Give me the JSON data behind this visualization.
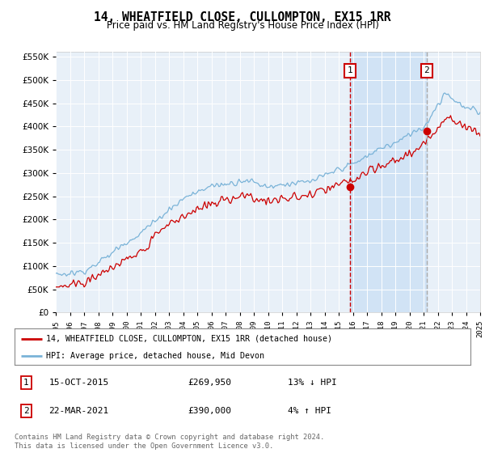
{
  "title": "14, WHEATFIELD CLOSE, CULLOMPTON, EX15 1RR",
  "subtitle": "Price paid vs. HM Land Registry's House Price Index (HPI)",
  "legend_line1": "14, WHEATFIELD CLOSE, CULLOMPTON, EX15 1RR (detached house)",
  "legend_line2": "HPI: Average price, detached house, Mid Devon",
  "annotation1_date": "15-OCT-2015",
  "annotation1_price": "£269,950",
  "annotation1_hpi": "13% ↓ HPI",
  "annotation2_date": "22-MAR-2021",
  "annotation2_price": "£390,000",
  "annotation2_hpi": "4% ↑ HPI",
  "footer": "Contains HM Land Registry data © Crown copyright and database right 2024.\nThis data is licensed under the Open Government Licence v3.0.",
  "hpi_color": "#7ab3d8",
  "price_color": "#cc0000",
  "annotation_color": "#cc0000",
  "vline1_color": "#cc0000",
  "vline2_color": "#aaaaaa",
  "shade_color": "#cce0f5",
  "background_color": "#e8f0f8",
  "chart_bg": "#e8f0f8",
  "ylim": [
    0,
    560000
  ],
  "yticks": [
    0,
    50000,
    100000,
    150000,
    200000,
    250000,
    300000,
    350000,
    400000,
    450000,
    500000,
    550000
  ],
  "start_year": 1995,
  "end_year": 2025,
  "sale1_year": 2015.79,
  "sale1_value": 269950,
  "sale2_year": 2021.22,
  "sale2_value": 390000
}
